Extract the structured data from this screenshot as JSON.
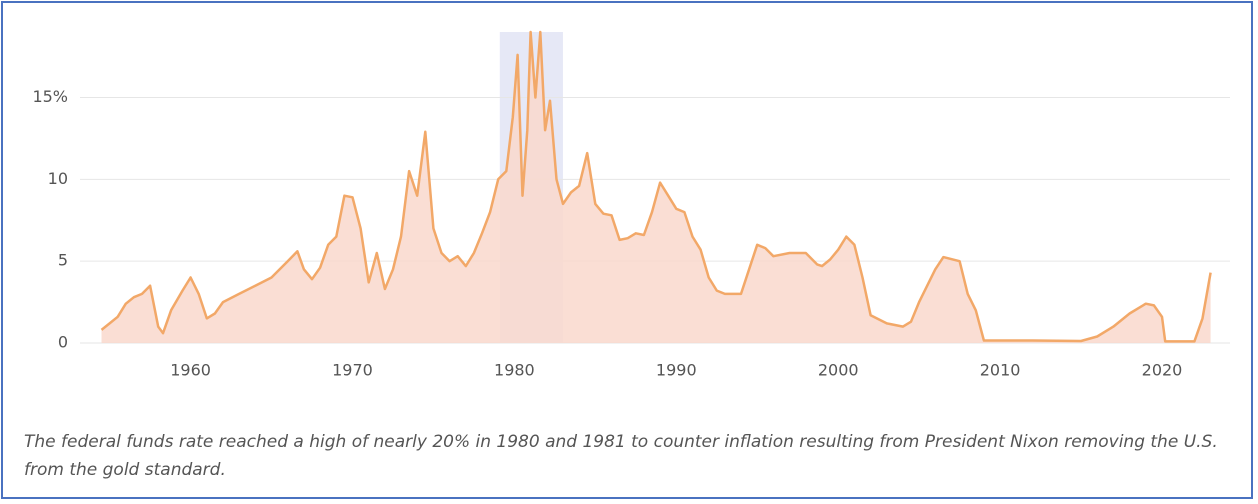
{
  "chart_data": {
    "type": "area",
    "caption": "The federal funds rate reached a high of nearly 20% in 1980 and 1981 to counter inflation resulting from President Nixon removing the U.S. from the gold standard.",
    "x": [
      1954.5,
      1955,
      1955.5,
      1956,
      1956.5,
      1957,
      1957.5,
      1958,
      1958.3,
      1958.8,
      1959.5,
      1960,
      1960.5,
      1961,
      1961.5,
      1962,
      1963,
      1964,
      1965,
      1966,
      1966.6,
      1967,
      1967.5,
      1968,
      1968.5,
      1969,
      1969.5,
      1970,
      1970.5,
      1971,
      1971.5,
      1972,
      1972.5,
      1973,
      1973.5,
      1974,
      1974.5,
      1975,
      1975.5,
      1976,
      1976.5,
      1977,
      1977.5,
      1978,
      1978.5,
      1979,
      1979.5,
      1979.9,
      1980.2,
      1980.5,
      1980.8,
      1981,
      1981.3,
      1981.6,
      1981.9,
      1982.2,
      1982.6,
      1983,
      1983.5,
      1984,
      1984.5,
      1985,
      1985.5,
      1986,
      1986.5,
      1987,
      1987.5,
      1988,
      1988.5,
      1989,
      1989.5,
      1990,
      1990.5,
      1991,
      1991.5,
      1992,
      1992.5,
      1993,
      1994,
      1994.5,
      1995,
      1995.5,
      1996,
      1997,
      1998,
      1998.7,
      1999,
      1999.5,
      2000,
      2000.5,
      2001,
      2001.5,
      2002,
      2003,
      2004,
      2004.5,
      2005,
      2006,
      2006.5,
      2007.5,
      2008,
      2008.5,
      2009,
      2012,
      2015,
      2016,
      2017,
      2018,
      2019,
      2019.5,
      2020,
      2020.2,
      2022,
      2022.5,
      2023
    ],
    "values": [
      0.8,
      1.2,
      1.6,
      2.4,
      2.8,
      3.0,
      3.5,
      1.0,
      0.6,
      2.0,
      3.2,
      4.0,
      3.0,
      1.5,
      1.8,
      2.5,
      3.0,
      3.5,
      4.0,
      5.0,
      5.6,
      4.5,
      3.9,
      4.6,
      6.0,
      6.5,
      9.0,
      8.9,
      7.0,
      3.7,
      5.5,
      3.3,
      4.5,
      6.5,
      10.5,
      9.0,
      12.9,
      7.0,
      5.5,
      5.0,
      5.3,
      4.7,
      5.5,
      6.7,
      8.0,
      10.0,
      10.5,
      13.8,
      17.6,
      9.0,
      13.0,
      19.0,
      15.0,
      19.0,
      13.0,
      14.8,
      10.0,
      8.5,
      9.2,
      9.6,
      11.6,
      8.5,
      7.9,
      7.8,
      6.3,
      6.4,
      6.7,
      6.6,
      8.0,
      9.8,
      9.0,
      8.2,
      8.0,
      6.5,
      5.7,
      4.0,
      3.2,
      3.0,
      3.0,
      4.5,
      6.0,
      5.8,
      5.3,
      5.5,
      5.5,
      4.8,
      4.7,
      5.1,
      5.7,
      6.5,
      6.0,
      4.0,
      1.7,
      1.2,
      1.0,
      1.3,
      2.5,
      4.5,
      5.25,
      5.0,
      3.0,
      2.0,
      0.15,
      0.15,
      0.12,
      0.4,
      1.0,
      1.8,
      2.4,
      2.3,
      1.6,
      0.1,
      0.1,
      1.5,
      4.3
    ],
    "color": "#f2a868",
    "fill": "#f9d8cc",
    "highlight": [
      1979.1,
      1983.0
    ],
    "highlight_color": "#e6e8f6",
    "xlim": [
      1950.7,
      2024.2
    ],
    "xticks": [
      1960,
      1970,
      1980,
      1990,
      2000,
      2010,
      2020
    ],
    "ylim": [
      0,
      19
    ],
    "yticks": [
      0,
      5,
      10,
      {
        "value": 15,
        "label": "15%"
      }
    ],
    "grid": true
  }
}
